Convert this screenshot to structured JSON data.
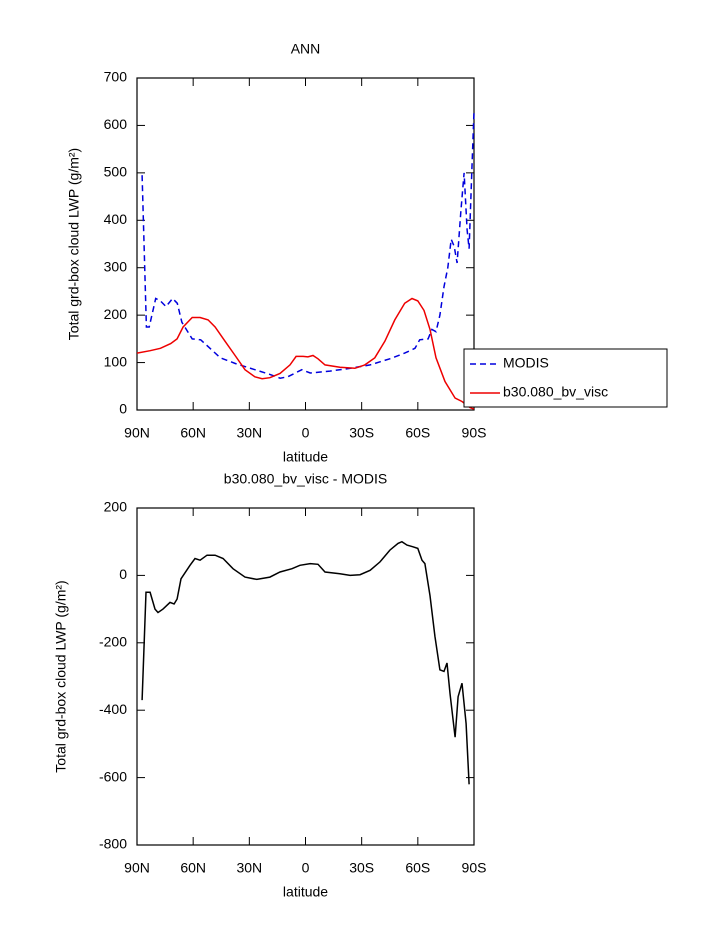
{
  "chart_data": [
    {
      "type": "line",
      "title": "ANN",
      "x_label": "latitude",
      "y_label": "Total grd-box cloud LWP (g/m²)",
      "xlim": [
        90,
        -90
      ],
      "xticks": [
        {
          "value": 90,
          "label": "90N"
        },
        {
          "value": 60,
          "label": "60N"
        },
        {
          "value": 30,
          "label": "30N"
        },
        0,
        {
          "value": -30,
          "label": "30S"
        },
        {
          "value": -60,
          "label": "60S"
        },
        {
          "value": -90,
          "label": "90S"
        }
      ],
      "ylim": [
        0,
        700
      ],
      "yticks": [
        0,
        100,
        200,
        300,
        400,
        500,
        600,
        700
      ],
      "legend": "right",
      "series": [
        {
          "name": "MODIS",
          "color": "#0000dd",
          "linestyle": "dashed",
          "x": [
            87.3,
            85,
            83.5,
            80,
            77.5,
            74.5,
            71,
            68.5,
            66,
            60.5,
            56,
            51,
            45.5,
            37.5,
            27,
            19,
            13.5,
            9.5,
            4.5,
            2,
            -2.5,
            -13,
            -24,
            -34.5,
            -45,
            -53,
            -58.5,
            -61,
            -65.5,
            -67.5,
            -69.7,
            -71.8,
            -74,
            -76,
            -77.8,
            -79.4,
            -81,
            -83,
            -84.7,
            -86.3,
            -87.4,
            -89,
            -90
          ],
          "values": [
            495,
            175,
            175,
            235,
            230,
            218,
            235,
            225,
            185,
            150,
            148,
            130,
            110,
            98,
            85,
            75,
            67,
            70,
            80,
            85,
            78,
            82,
            88,
            95,
            108,
            120,
            130,
            148,
            150,
            170,
            165,
            200,
            260,
            300,
            360,
            345,
            310,
            420,
            500,
            380,
            340,
            520,
            630
          ]
        },
        {
          "name": "b30.080_bv_visc",
          "color": "#ee0000",
          "linestyle": "solid",
          "x": [
            90,
            83,
            77.5,
            72,
            68.6,
            65.4,
            60.5,
            56.3,
            52,
            48.3,
            43,
            37.6,
            32.3,
            27,
            23.2,
            19,
            13.6,
            8.3,
            5,
            1.3,
            -1.3,
            -4,
            -6.7,
            -10.4,
            -18.4,
            -26.4,
            -31.7,
            -37,
            -42.4,
            -47.7,
            -53,
            -56.9,
            -60,
            -63.3,
            -66.5,
            -69.7,
            -74.5,
            -79.9,
            -83.6,
            -87.9,
            -90
          ],
          "values": [
            120,
            125,
            130,
            140,
            150,
            175,
            195,
            195,
            190,
            175,
            145,
            115,
            85,
            70,
            66,
            68,
            77,
            95,
            113,
            113,
            112,
            115,
            108,
            95,
            90,
            88,
            95,
            110,
            145,
            190,
            225,
            235,
            230,
            210,
            170,
            110,
            60,
            25,
            18,
            5,
            2
          ]
        }
      ]
    },
    {
      "type": "line",
      "title": "b30.080_bv_visc - MODIS",
      "x_label": "latitude",
      "y_label": "Total grd-box cloud LWP (g/m²)",
      "xlim": [
        90,
        -90
      ],
      "xticks": [
        {
          "value": 90,
          "label": "90N"
        },
        {
          "value": 60,
          "label": "60N"
        },
        {
          "value": 30,
          "label": "30N"
        },
        0,
        {
          "value": -30,
          "label": "30S"
        },
        {
          "value": -60,
          "label": "60S"
        },
        {
          "value": -90,
          "label": "90S"
        }
      ],
      "ylim": [
        -800,
        200
      ],
      "yticks": [
        -800,
        -600,
        -400,
        -200,
        0,
        200
      ],
      "series": [
        {
          "color": "#000000",
          "linestyle": "solid",
          "x": [
            87.3,
            85.2,
            83,
            80.4,
            78.8,
            76.1,
            72.4,
            70.2,
            68.6,
            66.5,
            61.7,
            59,
            56.3,
            52.6,
            48.3,
            44,
            38.7,
            32.3,
            26,
            19,
            13.6,
            7.2,
            3,
            -2.5,
            -6.7,
            -10.4,
            -18.4,
            -23.8,
            -29.1,
            -34.5,
            -39.8,
            -45.1,
            -49.4,
            -51.5,
            -54.2,
            -57.4,
            -60,
            -62.2,
            -63.8,
            -66.5,
            -69.1,
            -71.8,
            -74,
            -75.6,
            -77.2,
            -79.9,
            -81.5,
            -83.6,
            -85.8,
            -87.4
          ],
          "values": [
            -370,
            -50,
            -50,
            -100,
            -110,
            -100,
            -80,
            -85,
            -70,
            -10,
            30,
            50,
            45,
            60,
            60,
            50,
            20,
            -5,
            -12,
            -5,
            10,
            20,
            30,
            35,
            33,
            10,
            5,
            0,
            2,
            15,
            40,
            75,
            95,
            100,
            90,
            85,
            80,
            45,
            35,
            -60,
            -180,
            -280,
            -285,
            -260,
            -350,
            -480,
            -360,
            -320,
            -440,
            -620
          ]
        }
      ]
    }
  ]
}
